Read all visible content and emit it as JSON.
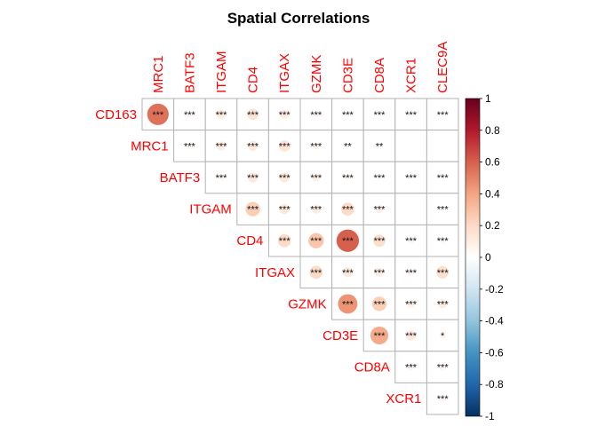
{
  "chart_data": {
    "type": "heatmap",
    "subtype": "upper-triangle correlation plot (circle method)",
    "title": "Spatial Correlations",
    "rows": [
      "CD163",
      "MRC1",
      "BATF3",
      "ITGAM",
      "CD4",
      "ITGAX",
      "GZMK",
      "CD3E",
      "CD8A",
      "XCR1"
    ],
    "columns": [
      "MRC1",
      "BATF3",
      "ITGAM",
      "CD4",
      "ITGAX",
      "GZMK",
      "CD3E",
      "CD8A",
      "XCR1",
      "CLEC9A"
    ],
    "values": [
      [
        0.55,
        0.05,
        0.1,
        0.15,
        0.1,
        0.05,
        -0.03,
        -0.02,
        0.02,
        0.02
      ],
      [
        null,
        0.05,
        0.1,
        0.12,
        0.15,
        0.05,
        0.02,
        0.03,
        0.0,
        0.01
      ],
      [
        null,
        null,
        0.05,
        0.12,
        0.12,
        0.08,
        0.05,
        0.03,
        0.02,
        0.02
      ],
      [
        null,
        null,
        null,
        0.25,
        0.12,
        0.1,
        0.2,
        0.08,
        0.0,
        0.02
      ],
      [
        null,
        null,
        null,
        null,
        0.2,
        0.28,
        0.6,
        0.18,
        0.05,
        0.05
      ],
      [
        null,
        null,
        null,
        null,
        null,
        0.2,
        0.12,
        0.1,
        0.05,
        0.18
      ],
      [
        null,
        null,
        null,
        null,
        null,
        null,
        0.45,
        0.25,
        0.08,
        0.1
      ],
      [
        null,
        null,
        null,
        null,
        null,
        null,
        null,
        0.38,
        0.12,
        0.05
      ],
      [
        null,
        null,
        null,
        null,
        null,
        null,
        null,
        null,
        0.05,
        0.05
      ],
      [
        null,
        null,
        null,
        null,
        null,
        null,
        null,
        null,
        null,
        0.05
      ]
    ],
    "significance": [
      [
        "***",
        "***",
        "***",
        "***",
        "***",
        "***",
        "***",
        "***",
        "***",
        "***"
      ],
      [
        null,
        "***",
        "***",
        "***",
        "***",
        "***",
        "**",
        "**",
        "",
        ""
      ],
      [
        null,
        null,
        "***",
        "***",
        "***",
        "***",
        "***",
        "***",
        "***",
        "***"
      ],
      [
        null,
        null,
        null,
        "***",
        "***",
        "***",
        "***",
        "***",
        "",
        "***"
      ],
      [
        null,
        null,
        null,
        null,
        "***",
        "***",
        "***",
        "***",
        "***",
        "***"
      ],
      [
        null,
        null,
        null,
        null,
        null,
        "***",
        "***",
        "***",
        "***",
        "***"
      ],
      [
        null,
        null,
        null,
        null,
        null,
        null,
        "***",
        "***",
        "***",
        "***"
      ],
      [
        null,
        null,
        null,
        null,
        null,
        null,
        null,
        "***",
        "***",
        "*"
      ],
      [
        null,
        null,
        null,
        null,
        null,
        null,
        null,
        null,
        "***",
        "***"
      ],
      [
        null,
        null,
        null,
        null,
        null,
        null,
        null,
        null,
        null,
        "***"
      ]
    ],
    "colorbar": {
      "range": [
        -1,
        1
      ],
      "ticks": [
        "1",
        "0.8",
        "0.6",
        "0.4",
        "0.2",
        "0",
        "-0.2",
        "-0.4",
        "-0.6",
        "-0.8",
        "-1"
      ],
      "colors": [
        "#67001F",
        "#B2182B",
        "#D6604D",
        "#F4A582",
        "#FDDBC7",
        "#FFFFFF",
        "#D1E5F0",
        "#92C5DE",
        "#4393C3",
        "#2166AC",
        "#053061"
      ]
    },
    "label_color": "#FF0000",
    "grid": true
  }
}
